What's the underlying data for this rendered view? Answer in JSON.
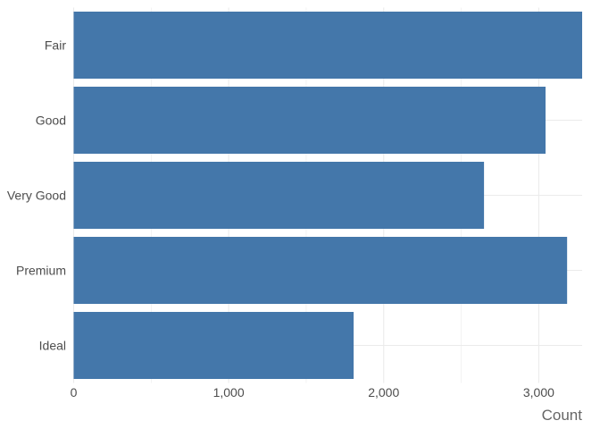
{
  "chart_data": {
    "type": "bar",
    "orientation": "horizontal",
    "categories": [
      "Fair",
      "Good",
      "Very Good",
      "Premium",
      "Ideal"
    ],
    "values": [
      3280,
      3044,
      2647,
      3183,
      1806
    ],
    "xlabel": "Count",
    "ylabel": "",
    "xlim": [
      0,
      3280
    ],
    "xticks": [
      0,
      1000,
      2000,
      3000
    ],
    "xtick_labels": [
      "0",
      "1,000",
      "2,000",
      "3,000"
    ],
    "grid": true,
    "bar_color": "#4477AA",
    "grid_color": "#EBEBEB"
  }
}
